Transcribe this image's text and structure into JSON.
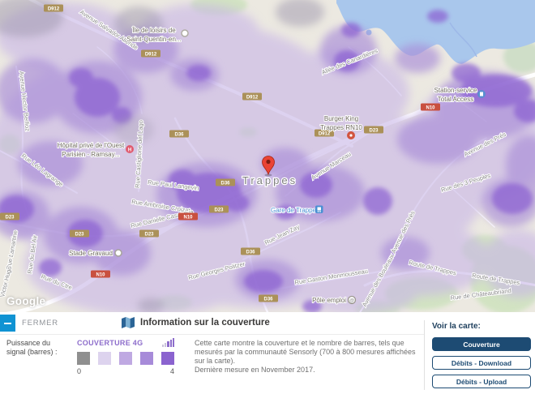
{
  "map": {
    "attribution": "Google",
    "city_label": "Trappes",
    "pois": {
      "leisure": {
        "line1": "Île de loisirs de",
        "line2": "Saint-Quentin-en..."
      },
      "station": {
        "line1": "Station-service",
        "line2": "Total Access"
      },
      "burger": {
        "line1": "Burger King",
        "line2": "Trappes RN10"
      },
      "hospital": {
        "line1": "Hôpital privé de l'Ouest",
        "line2": "Parisien - Ramsay..."
      },
      "gare": {
        "label": "Gare de Trappes"
      },
      "stade": {
        "label": "Stade Gravaud"
      },
      "pole": {
        "label": "Pôle emploi"
      }
    },
    "streets": [
      "Avenue Salvador Allende",
      "Avenue Hector Berlioz",
      "Allée des Canardières",
      "Rue Léo Lagrange",
      "Rue Castiglione del Lago",
      "Rue Paul Langevin",
      "Rue Ambroise Croizat",
      "Rue Danielle Casanova",
      "Avenue Marceau",
      "Avenue des Prés",
      "Avenue des Prés",
      "Rue des 3 Peuples",
      "Rue Jean Zay",
      "Rue Georges Politzer",
      "Rue Gaston Monmousseau",
      "Avenue des Bouleaux",
      "Route de Trappes",
      "Route de Trappes",
      "Rue de Châteaubriand",
      "Rue Lamartine",
      "Rue du Bel Air",
      "Rue du Ctre",
      "Victor Hugo"
    ],
    "badges": [
      "D912",
      "D912",
      "D912",
      "N10",
      "D912",
      "D23",
      "D36",
      "D36",
      "D23",
      "D23",
      "N10",
      "D23",
      "D23",
      "N10",
      "D36",
      "D36"
    ]
  },
  "panel": {
    "close_label": "FERMER",
    "title": "Information sur la couverture",
    "signal_label": "Puissance du signal (barres) :",
    "legend": {
      "title": "COUVERTURE 4G",
      "min": "0",
      "max": "4",
      "colors": [
        "#8f8f8f",
        "#ddd3ee",
        "#bfa9e2",
        "#a78bd9",
        "#8b63cf"
      ]
    },
    "description_1": "Cette carte montre la couverture et le nombre de barres, tels que mesurés par la communauté Sensorly (700 à 800 mesures affichées sur la carte).",
    "description_2": "Dernière mesure en November 2017.",
    "sidebar": {
      "title": "Voir la carte:",
      "buttons": [
        {
          "label": "Couverture",
          "active": true
        },
        {
          "label": "Débits - Download",
          "active": false
        },
        {
          "label": "Débits - Upload",
          "active": false
        }
      ]
    }
  },
  "colors": {
    "fermer_blue": "#1093d3",
    "navy": "#1d4b73",
    "legend_title_purple": "#8d6dcb",
    "coverage_light": "#c8b5e7",
    "coverage_medium": "#a98dd8",
    "coverage_dark": "#8a5ed2",
    "coverage_none": "#9e97ad",
    "water": "#a9c7ec",
    "pin_red": "#ea4335"
  }
}
